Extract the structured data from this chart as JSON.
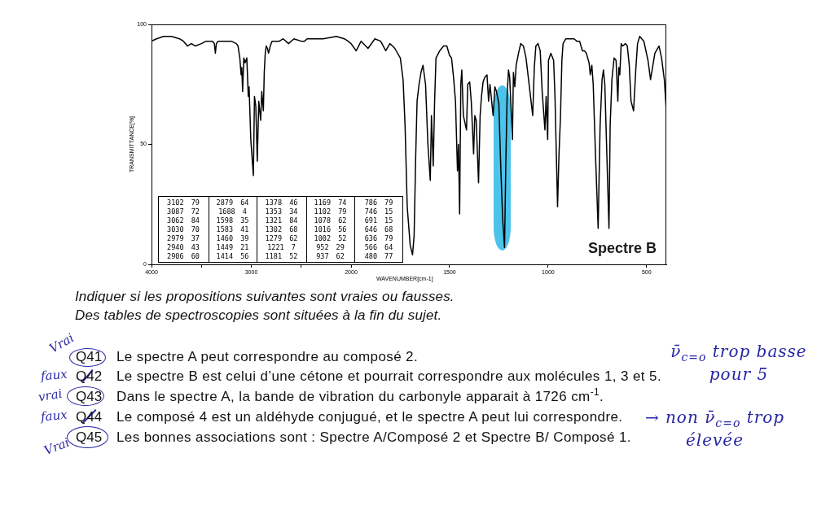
{
  "chart_data": [
    {
      "type": "line",
      "xlabel": "WAVENUMBER[cm-1]",
      "ylabel": "TRANSMITTANCE[%]",
      "color": "#000000",
      "x": [
        4000,
        3950,
        3880,
        3800,
        3720,
        3680,
        3640,
        3600,
        3560,
        3500,
        3453,
        3390,
        3370,
        3360,
        3350,
        3333,
        3267,
        3200,
        3150,
        3133,
        3115,
        3102,
        3095,
        3087,
        3075,
        3062,
        3045,
        3030,
        3022,
        3005,
        2979,
        2968,
        2955,
        2940,
        2925,
        2906,
        2895,
        2879,
        2870,
        2860,
        2850,
        2838,
        2827,
        2810,
        2792,
        2720,
        2680,
        2627,
        2573,
        2500,
        2467,
        2440,
        2280,
        2147,
        2067,
        2030,
        2000
      ],
      "values": [
        93,
        94,
        95,
        95,
        94,
        93,
        91,
        92,
        91,
        92,
        93,
        93,
        92,
        88,
        92,
        93,
        93,
        93,
        92,
        91,
        86,
        79,
        82,
        72,
        86,
        84,
        86,
        70,
        74,
        52,
        37,
        70,
        66,
        43,
        68,
        60,
        72,
        64,
        80,
        88,
        91,
        90,
        88,
        91,
        93,
        93,
        94,
        92,
        94,
        93,
        93,
        94,
        94,
        95,
        94,
        93,
        92
      ],
      "xlim": [
        4000,
        2000
      ],
      "xticks": [
        4000,
        {
          "value": 3500,
          "label": null
        },
        3000,
        {
          "value": 2500,
          "label": null
        },
        2000
      ],
      "ylim": [
        0,
        100
      ],
      "yticks": [
        0,
        50,
        100
      ],
      "annotations": [
        "3102 79",
        "3087 72",
        "3062 84",
        "3030 70",
        "2979 37",
        "2940 43",
        "2906 60",
        "2879 64",
        "1688 4",
        "1598 35",
        "1583 41",
        "1460 39",
        "1449 21",
        "1414 56",
        "1378 46",
        "1353 34",
        "1321 84",
        "1302 68",
        "1279 62",
        "1221 7",
        "1181 52",
        "1169 74",
        "1102 79",
        "1078 62",
        "1016 56",
        "1002 52",
        "952 29",
        "937 62",
        "786 79",
        "746 15",
        "691 15",
        "646 68",
        "636 79",
        "566 64",
        "480 77",
        "Indiquer si les propositions suivantes sont vraies ou fausses.",
        "Des tables de spectroscopies sont situées à la fin du sujet.",
        "Q41",
        "Le spectre A peut correspondre au composé 2.",
        "Q42",
        "Le spectre B est celui d’une cétone et pourrait correspondre aux molécules 1, 3 et 5.",
        "Q43",
        "Dans le spectre A, la bande de vibration du carbonyle apparait à 1726 cm$^{-1}$.",
        "Q44",
        "Le composé 4 est un aldéhyde conjugué, et le spectre A peut lui correspondre.",
        "Q45",
        "Les bonnes associations sont : Spectre A/Composé 2 et Spectre B/ Composé 1.",
        "Vrai",
        "faux",
        "vrai",
        "faux",
        "Vrai",
        "ν̄$_{c=o}$ trop basse pour 5",
        "→ non ν̄$_{c=o}$ trop élevée"
      ]
    },
    {
      "type": "line",
      "color": "#000000",
      "x": [
        2000,
        1974,
        1949,
        1914,
        1879,
        1850,
        1824,
        1803,
        1790,
        1778,
        1750,
        1736,
        1726,
        1715,
        1700,
        1688,
        1680,
        1672,
        1665,
        1655,
        1645,
        1635,
        1622,
        1610,
        1598,
        1592,
        1583,
        1576,
        1569,
        1550,
        1530,
        1514,
        1500,
        1490,
        1480,
        1470,
        1460,
        1455,
        1449,
        1443,
        1438,
        1430,
        1414,
        1408,
        1398,
        1390,
        1378,
        1372,
        1365,
        1353,
        1345,
        1338,
        1330,
        1321,
        1310,
        1302,
        1295,
        1279,
        1270,
        1262,
        1250,
        1240,
        1230,
        1221,
        1215,
        1208,
        1201,
        1195,
        1181,
        1176,
        1169,
        1162,
        1150,
        1139,
        1125,
        1112,
        1102,
        1095,
        1078,
        1070,
        1062,
        1051,
        1040,
        1030,
        1016,
        1010,
        1002,
        998,
        986,
        972,
        965,
        952,
        945,
        937,
        930,
        924,
        910,
        868,
        854,
        840,
        826,
        815,
        806,
        792,
        786,
        778,
        771,
        760,
        746,
        736,
        726,
        719,
        712,
        704,
        691,
        685,
        676,
        665,
        655,
        646,
        641,
        636,
        629,
        621,
        607,
        598,
        588,
        579,
        566,
        555,
        546,
        535,
        514,
        493,
        480,
        458,
        437,
        424,
        410,
        400
      ],
      "values": [
        92,
        89,
        93,
        90,
        94,
        93,
        89,
        92,
        91,
        90,
        86,
        77,
        58,
        24,
        8,
        4,
        12,
        45,
        68,
        75,
        80,
        83,
        75,
        50,
        35,
        62,
        41,
        68,
        86,
        89,
        91,
        91,
        87,
        86,
        78,
        68,
        39,
        50,
        21,
        75,
        81,
        62,
        56,
        75,
        76,
        68,
        46,
        62,
        60,
        34,
        62,
        70,
        76,
        78,
        79,
        68,
        75,
        62,
        74,
        72,
        67,
        40,
        18,
        7,
        40,
        70,
        81,
        78,
        52,
        80,
        74,
        83,
        88,
        92,
        91,
        86,
        79,
        74,
        62,
        82,
        91,
        92,
        89,
        72,
        56,
        70,
        52,
        85,
        88,
        85,
        70,
        24,
        45,
        62,
        85,
        92,
        94,
        94,
        93,
        93,
        89,
        89,
        88,
        84,
        79,
        83,
        75,
        47,
        15,
        58,
        77,
        81,
        75,
        52,
        15,
        58,
        77,
        86,
        85,
        68,
        82,
        79,
        92,
        91,
        92,
        91,
        83,
        68,
        64,
        81,
        92,
        95,
        93,
        85,
        77,
        88,
        91,
        86,
        77,
        64
      ],
      "xlim": [
        2000,
        400
      ],
      "xticks": [
        1500,
        1000,
        500
      ],
      "ylim": [
        0,
        100
      ],
      "tick_labels": "x",
      "annotations": [
        "Spectre B"
      ]
    }
  ]
}
